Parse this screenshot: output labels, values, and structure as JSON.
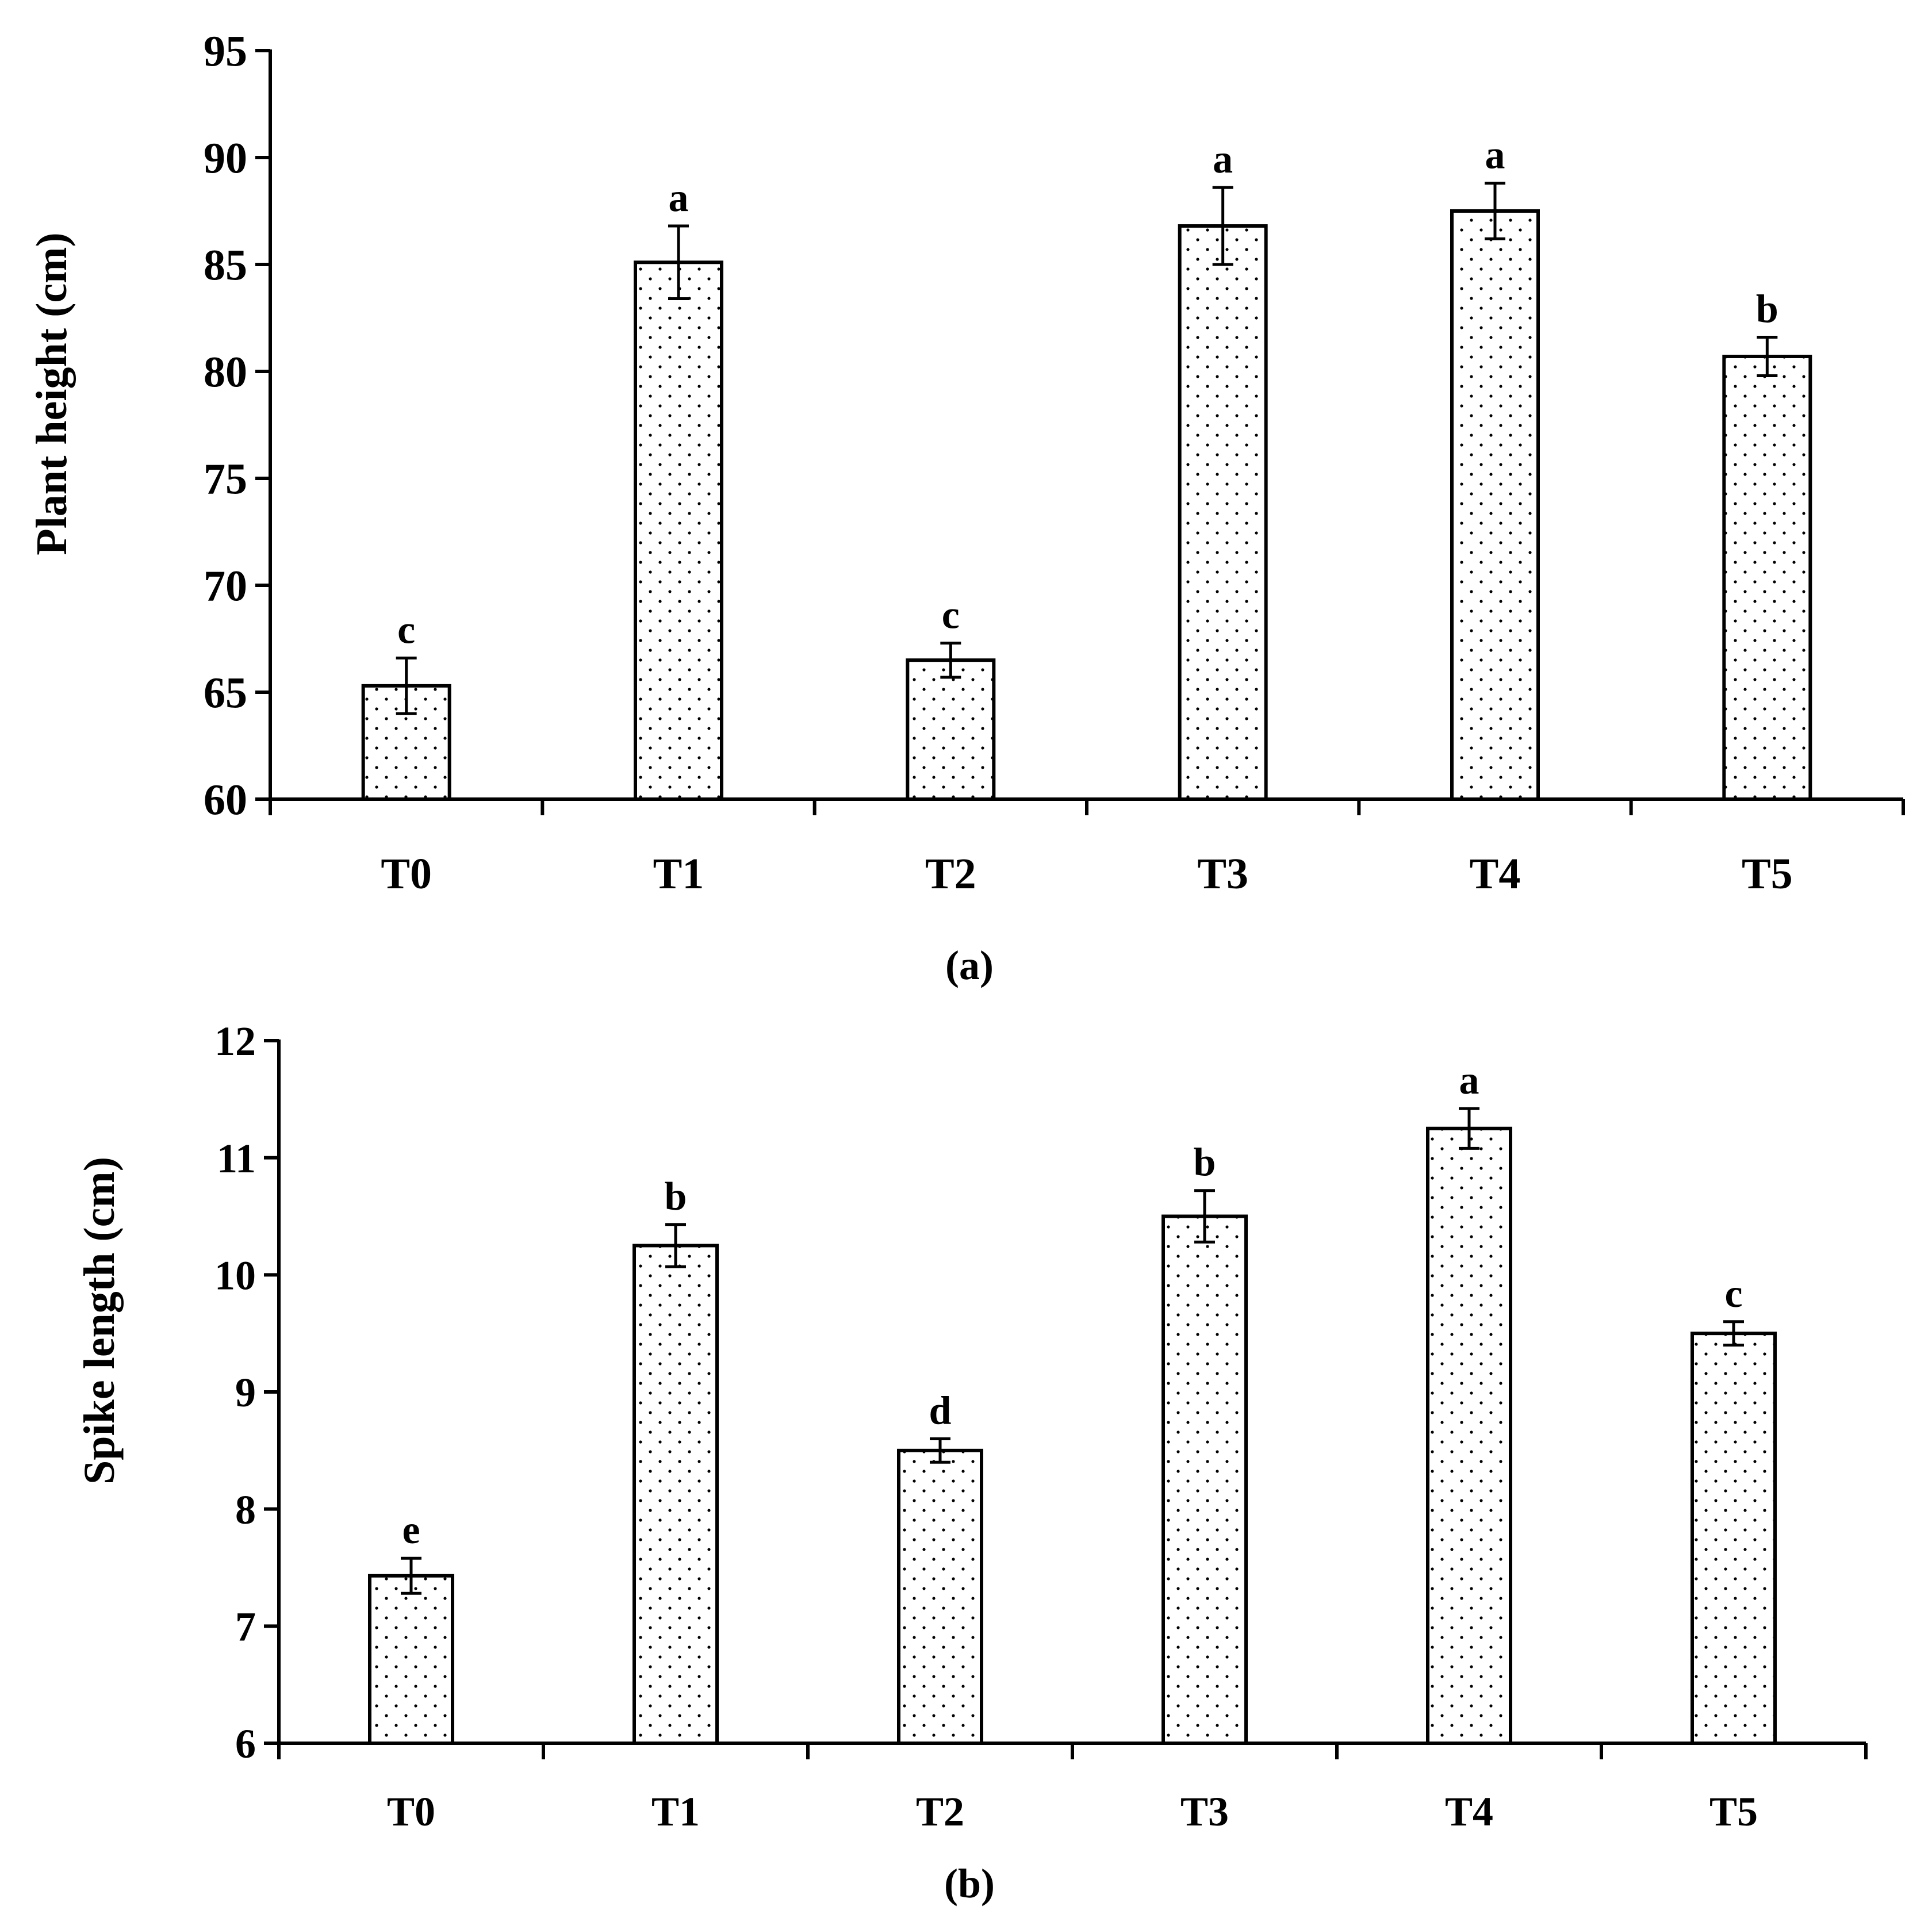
{
  "chart_data": [
    {
      "type": "bar",
      "panel_label": "(a)",
      "title": "",
      "xlabel": "",
      "ylabel": "Plant height (cm)",
      "ylim": [
        60,
        95
      ],
      "yticks": [
        60,
        65,
        70,
        75,
        80,
        85,
        90,
        95
      ],
      "categories": [
        "T0",
        "T1",
        "T2",
        "T3",
        "T4",
        "T5"
      ],
      "values": [
        65.3,
        85.1,
        66.5,
        86.8,
        87.5,
        80.7
      ],
      "errors": [
        1.3,
        1.7,
        0.8,
        1.8,
        1.3,
        0.9
      ],
      "significance_letters": [
        "c",
        "a",
        "c",
        "a",
        "a",
        "b"
      ],
      "grid": false,
      "fill": "dotted",
      "colors": {
        "bar_fill": "#ffffff",
        "bar_stroke": "#000000",
        "dot": "#000000"
      }
    },
    {
      "type": "bar",
      "panel_label": "(b)",
      "title": "",
      "xlabel": "",
      "ylabel": "Spike length (cm)",
      "ylim": [
        6,
        12
      ],
      "yticks": [
        6,
        7,
        8,
        9,
        10,
        11,
        12
      ],
      "categories": [
        "T0",
        "T1",
        "T2",
        "T3",
        "T4",
        "T5"
      ],
      "values": [
        7.43,
        10.25,
        8.5,
        10.5,
        11.25,
        9.5
      ],
      "errors": [
        0.15,
        0.18,
        0.1,
        0.22,
        0.17,
        0.1
      ],
      "significance_letters": [
        "e",
        "b",
        "d",
        "b",
        "a",
        "c"
      ],
      "grid": false,
      "fill": "dotted",
      "colors": {
        "bar_fill": "#ffffff",
        "bar_stroke": "#000000",
        "dot": "#000000"
      }
    }
  ]
}
